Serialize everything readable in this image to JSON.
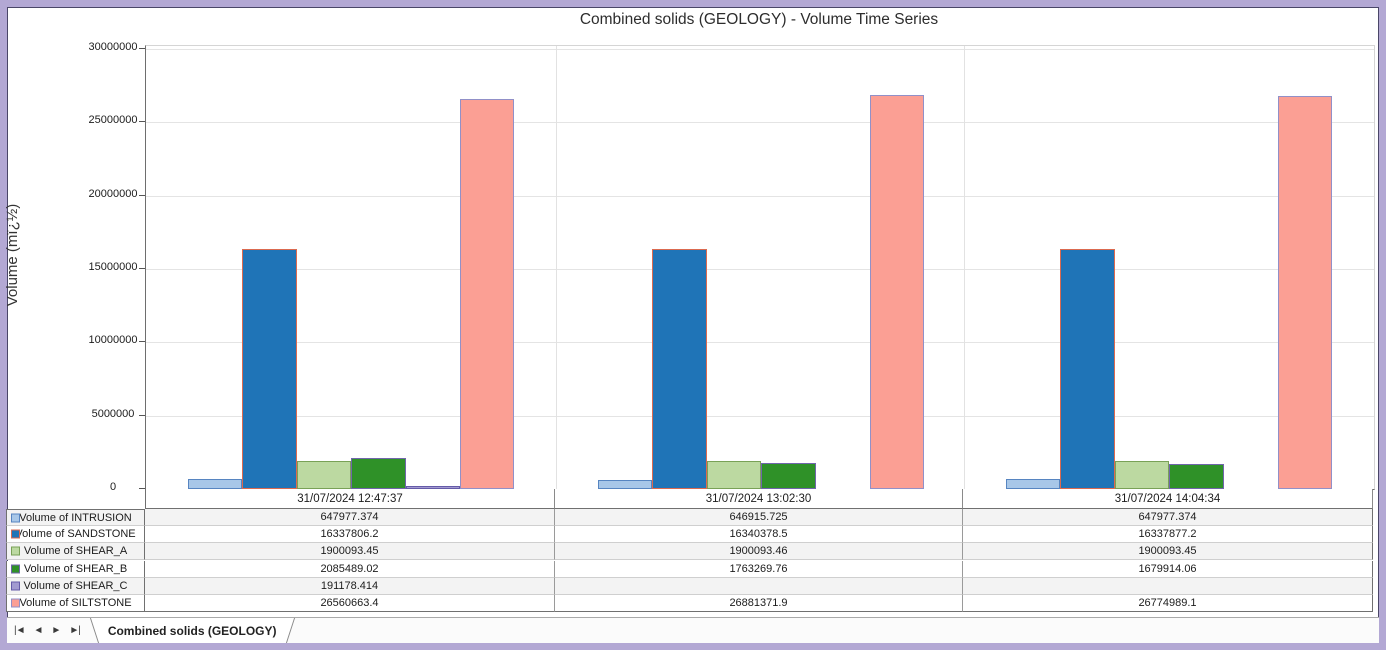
{
  "title": "Combined solids (GEOLOGY) - Volume Time Series",
  "y_axis": {
    "label": "Volume (mï¿½)"
  },
  "chart_data": {
    "type": "bar",
    "title": "Combined solids (GEOLOGY) - Volume Time Series",
    "xlabel": "",
    "ylabel": "Volume (mï¿½)",
    "ylim": [
      0,
      30000000
    ],
    "ticks": [
      0,
      5000000,
      10000000,
      15000000,
      20000000,
      25000000,
      30000000
    ],
    "grid": true,
    "legend_position": "table-left",
    "categories": [
      "31/07/2024 12:47:37",
      "31/07/2024 13:02:30",
      "31/07/2024 14:04:34"
    ],
    "series": [
      {
        "key": "intrusion",
        "name": "Volume of INTRUSION",
        "fill": "#a8c7e8",
        "border": "#5785c1",
        "values": [
          647977.374,
          646915.725,
          647977.374
        ],
        "cells": [
          "647977.374",
          "646915.725",
          "647977.374"
        ]
      },
      {
        "key": "sandstone",
        "name": "Volume of SANDSTONE",
        "fill": "#1f74b7",
        "border": "#db6a50",
        "values": [
          16337806.2,
          16340378.5,
          16337877.2
        ],
        "cells": [
          "16337806.2",
          "16340378.5",
          "16337877.2"
        ]
      },
      {
        "key": "shear-a",
        "name": "Volume of SHEAR_A",
        "fill": "#bcd9a1",
        "border": "#79a157",
        "values": [
          1900093.45,
          1900093.46,
          1900093.45
        ],
        "cells": [
          "1900093.45",
          "1900093.46",
          "1900093.45"
        ]
      },
      {
        "key": "shear-b",
        "name": "Volume of SHEAR_B",
        "fill": "#2f9128",
        "border": "#7066ab",
        "values": [
          2085489.02,
          1763269.76,
          1679914.06
        ],
        "cells": [
          "2085489.02",
          "1763269.76",
          "1679914.06"
        ]
      },
      {
        "key": "shear-c",
        "name": "Volume of SHEAR_C",
        "fill": "#a29ad0",
        "border": "#655ba8",
        "values": [
          191178.414,
          null,
          null
        ],
        "cells": [
          "191178.414",
          "",
          ""
        ]
      },
      {
        "key": "siltstone",
        "name": "Volume of SILTSTONE",
        "fill": "#fb9f94",
        "border": "#9190c8",
        "values": [
          26560663.4,
          26881371.9,
          26774989.1
        ],
        "cells": [
          "26560663.4",
          "26881371.9",
          "26774989.1"
        ]
      }
    ]
  },
  "tab_bar": {
    "tab_label": "Combined solids (GEOLOGY)",
    "nav": [
      {
        "key": "first",
        "glyph": "|◄"
      },
      {
        "key": "prev",
        "glyph": "◄"
      },
      {
        "key": "next",
        "glyph": "►"
      },
      {
        "key": "last",
        "glyph": "►|"
      }
    ]
  }
}
